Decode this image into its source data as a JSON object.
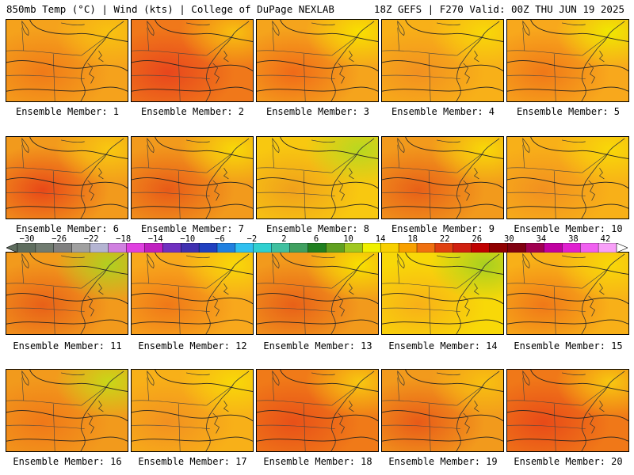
{
  "header": {
    "left": "850mb Temp (°C) | Wind (kts) | College of DuPage NEXLAB",
    "right": "18Z GEFS | F270 Valid: 00Z THU JUN 19 2025"
  },
  "colorbar": {
    "labels": [
      "−30",
      "−26",
      "−22",
      "−18",
      "−14",
      "−10",
      "−6",
      "−2",
      "2",
      "6",
      "10",
      "14",
      "18",
      "22",
      "26",
      "30",
      "34",
      "38",
      "42"
    ],
    "colors": [
      "#5f6e5f",
      "#707b70",
      "#808080",
      "#a0a0a0",
      "#b4b4d2",
      "#d080e0",
      "#e040e0",
      "#c020c0",
      "#7030c0",
      "#4030b0",
      "#2040c0",
      "#2080e0",
      "#30c0f0",
      "#30d0d0",
      "#40c0a0",
      "#40a060",
      "#208020",
      "#60a020",
      "#a0c820",
      "#f0f000",
      "#f8d000",
      "#f8a000",
      "#f07010",
      "#e04010",
      "#d02010",
      "#c00000",
      "#900000",
      "#800010",
      "#a00050",
      "#c000a0",
      "#e020d0",
      "#f060f0",
      "#f8a0f8"
    ]
  },
  "panels": [
    {
      "label": "Ensemble Member: 1",
      "c1": "#f5a21c",
      "c2": "#f07a18",
      "c3": "#f8c210"
    },
    {
      "label": "Ensemble Member: 2",
      "c1": "#f0781a",
      "c2": "#e8461c",
      "c3": "#f8c010"
    },
    {
      "label": "Ensemble Member: 3",
      "c1": "#f5a41c",
      "c2": "#f06a18",
      "c3": "#f8e000"
    },
    {
      "label": "Ensemble Member: 4",
      "c1": "#f8b018",
      "c2": "#f29020",
      "c3": "#f8d808"
    },
    {
      "label": "Ensemble Member: 5",
      "c1": "#f8a81c",
      "c2": "#f07818",
      "c3": "#f0e800"
    },
    {
      "label": "Ensemble Member: 6",
      "c1": "#f29a1c",
      "c2": "#e84818",
      "c3": "#f8c810"
    },
    {
      "label": "Ensemble Member: 7",
      "c1": "#f29a1c",
      "c2": "#e85a18",
      "c3": "#f8d808"
    },
    {
      "label": "Ensemble Member: 8",
      "c1": "#f8c810",
      "c2": "#f0a01c",
      "c3": "#b8d820"
    },
    {
      "label": "Ensemble Member: 9",
      "c1": "#f29a1c",
      "c2": "#e86018",
      "c3": "#f8d808"
    },
    {
      "label": "Ensemble Member: 10",
      "c1": "#f8b018",
      "c2": "#f29020",
      "c3": "#f8d808"
    },
    {
      "label": "Ensemble Member: 11",
      "c1": "#f29a1c",
      "c2": "#e86018",
      "c3": "#b0d020"
    },
    {
      "label": "Ensemble Member: 12",
      "c1": "#f8a81c",
      "c2": "#f07818",
      "c3": "#f8d808"
    },
    {
      "label": "Ensemble Member: 13",
      "c1": "#f29a1c",
      "c2": "#e86018",
      "c3": "#f8e000"
    },
    {
      "label": "Ensemble Member: 14",
      "c1": "#f8d808",
      "c2": "#f8b018",
      "c3": "#a8d020"
    },
    {
      "label": "Ensemble Member: 15",
      "c1": "#f8b018",
      "c2": "#f07818",
      "c3": "#f8d808"
    },
    {
      "label": "Ensemble Member: 16",
      "c1": "#f29a1c",
      "c2": "#f07818",
      "c3": "#c8d818"
    },
    {
      "label": "Ensemble Member: 17",
      "c1": "#f8b018",
      "c2": "#f29020",
      "c3": "#f8d808"
    },
    {
      "label": "Ensemble Member: 18",
      "c1": "#f07a18",
      "c2": "#e85018",
      "c3": "#f8c810"
    },
    {
      "label": "Ensemble Member: 19",
      "c1": "#f29a1c",
      "c2": "#e85a18",
      "c3": "#f8c010"
    },
    {
      "label": "Ensemble Member: 20",
      "c1": "#f07818",
      "c2": "#e84a18",
      "c3": "#f8c810"
    }
  ]
}
